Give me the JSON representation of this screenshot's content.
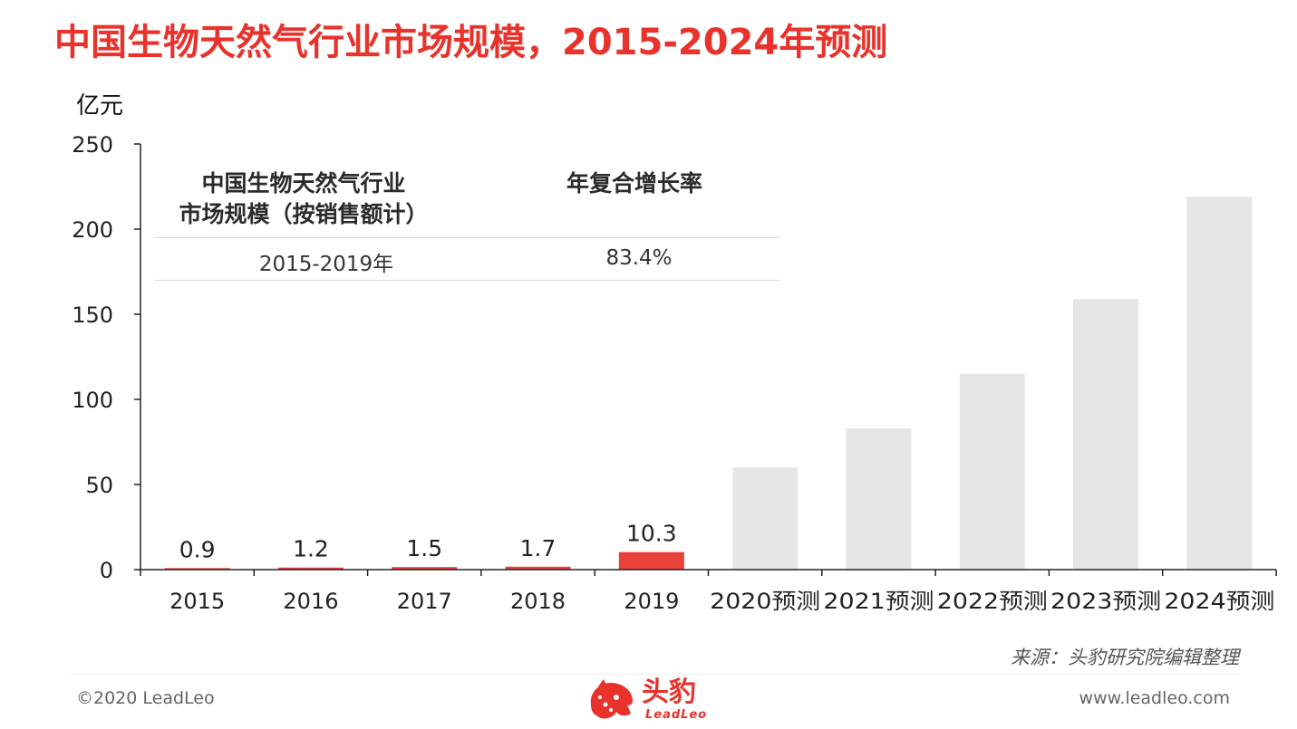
{
  "title": "中国生物天然气行业市场规模，2015-2024年预测",
  "unit_label": "亿元",
  "stat_table": {
    "header_market": "中国生物天然气行业",
    "header_market_line2": "市场规模（按销售额计）",
    "header_cagr": "年复合增长率",
    "period": "2015-2019年",
    "cagr_value": "83.4%"
  },
  "chart_data": {
    "type": "bar",
    "categories": [
      "2015",
      "2016",
      "2017",
      "2018",
      "2019",
      "2020预测",
      "2021预测",
      "2022预测",
      "2023预测",
      "2024预测"
    ],
    "values": [
      0.9,
      1.2,
      1.5,
      1.7,
      10.3,
      60,
      83,
      115,
      159,
      219
    ],
    "data_labels": [
      "0.9",
      "1.2",
      "1.5",
      "1.7",
      "10.3",
      "",
      "",
      "",
      "",
      ""
    ],
    "ylim": [
      0,
      250
    ],
    "yticks": [
      "0",
      "50",
      "100",
      "150",
      "200",
      "250"
    ],
    "ylabel": "亿元",
    "colors": {
      "historical": "#e9423a",
      "forecast": "#e6e6e6",
      "axis": "#222222"
    }
  },
  "footer": {
    "source": "来源：头豹研究院编辑整理",
    "copyright": "©2020 LeadLeo",
    "website": "www.leadleo.com",
    "logo_cn": "头豹",
    "logo_en": "LeadLeo"
  }
}
